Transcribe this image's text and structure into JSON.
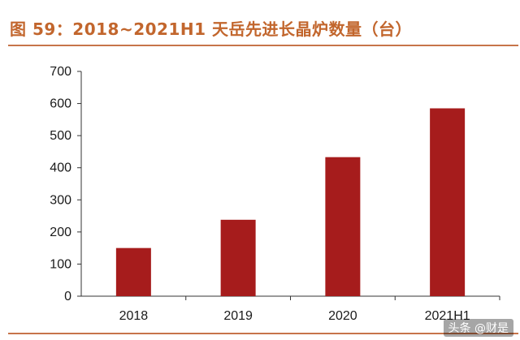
{
  "title": "图 59：2018~2021H1 天岳先进长晶炉数量（台）",
  "watermark": "头条 @财是",
  "colors": {
    "bar": "#a61c1c",
    "title": "#c2662d",
    "rule": "#c7744a",
    "axis": "#333333"
  },
  "chart_data": {
    "type": "bar",
    "categories": [
      "2018",
      "2019",
      "2020",
      "2021H1"
    ],
    "values": [
      150,
      238,
      433,
      585
    ],
    "ylim": [
      0,
      700
    ],
    "yticks": [
      0,
      100,
      200,
      300,
      400,
      500,
      600,
      700
    ],
    "title": "图 59：2018~2021H1 天岳先进长晶炉数量（台）",
    "xlabel": "",
    "ylabel": "",
    "grid": false,
    "legend": "none"
  }
}
